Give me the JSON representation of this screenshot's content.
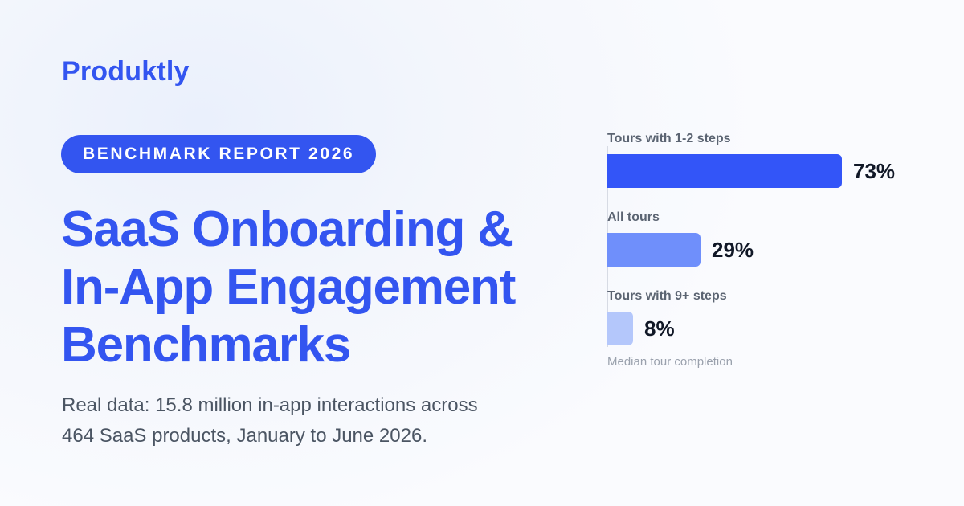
{
  "brand": "Produktly",
  "badge": "BENCHMARK REPORT 2026",
  "headline": [
    "SaaS Onboarding &",
    "In-App Engagement",
    "Benchmarks"
  ],
  "subtitle": [
    "Real data: 15.8 million in-app interactions across",
    "464 SaaS products, January to June 2026."
  ],
  "colors": {
    "accent": "#3355f0",
    "bar_1": "#3355f8",
    "bar_2": "#6f8ffb",
    "bar_3": "#b4c7fb"
  },
  "chart_data": {
    "type": "bar",
    "orientation": "horizontal",
    "categories": [
      "Tours with 1-2 steps",
      "All tours",
      "Tours with 9+ steps"
    ],
    "values": [
      73,
      29,
      8
    ],
    "value_labels": [
      "73%",
      "29%",
      "8%"
    ],
    "unit": "%",
    "caption": "Median tour completion",
    "xlim": [
      0,
      100
    ],
    "grid": false
  }
}
